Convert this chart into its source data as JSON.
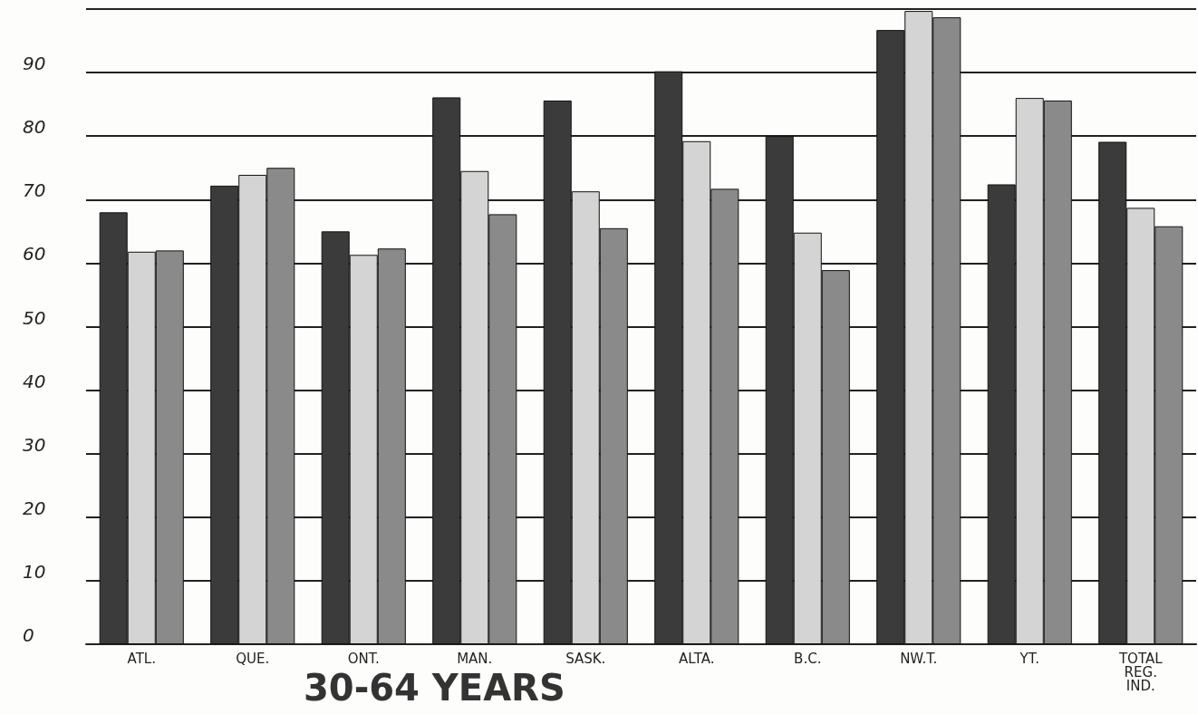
{
  "chart_data": {
    "type": "bar",
    "title": "30-64 YEARS",
    "categories": [
      "ATL.",
      "QUE.",
      "ONT.",
      "MAN.",
      "SASK.",
      "ALTA.",
      "B.C.",
      "NW.T.",
      "YT.",
      "TOTAL\nREG.\nIND."
    ],
    "series": [
      {
        "color": "#3b3b3b",
        "values": [
          68,
          72.2,
          65,
          86.1,
          85.6,
          90.2,
          80,
          96.7,
          72.4,
          79.1
        ]
      },
      {
        "color": "#d4d4d4",
        "values": [
          61.8,
          73.9,
          61.3,
          74.5,
          71.3,
          79.2,
          64.8,
          99.7,
          86,
          68.7
        ]
      },
      {
        "color": "#8a8a8a",
        "values": [
          62,
          75,
          62.3,
          67.7,
          65.5,
          71.7,
          58.9,
          98.7,
          85.6,
          65.8
        ]
      }
    ],
    "ylim": [
      0,
      100
    ],
    "yticks": [
      0,
      10,
      20,
      30,
      40,
      50,
      60,
      70,
      80,
      90,
      {
        "value": 100,
        "label": null
      }
    ],
    "grid": "y"
  }
}
